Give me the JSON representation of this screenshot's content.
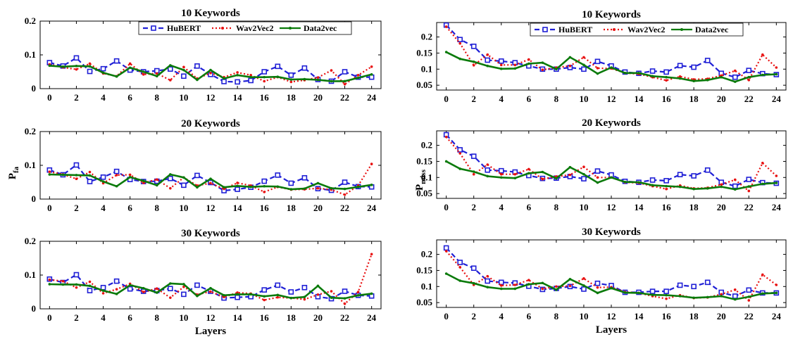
{
  "figure": {
    "left_ylabel": {
      "main": "P",
      "sub": "fa"
    },
    "right_ylabel": {
      "main": "P",
      "sub": "miss"
    },
    "xlabel": "Layers"
  },
  "legend": {
    "items": [
      {
        "label": "HuBERT",
        "color": "#1f1fd6",
        "marker": "square",
        "dash": "dashed"
      },
      {
        "label": "Wav2Vec2",
        "color": "#e81010",
        "marker": "dot",
        "dash": "dotted"
      },
      {
        "label": "Data2vec",
        "color": "#0a7a0a",
        "marker": "dot",
        "dash": "solid"
      }
    ]
  },
  "chart_data": [
    {
      "type": "line",
      "title": "10 Keywords",
      "xlabel": "",
      "ylabel": "",
      "xticks": [
        "0",
        "2",
        "4",
        "6",
        "8",
        "10",
        "12",
        "14",
        "16",
        "18",
        "20",
        "22",
        "24"
      ],
      "yticks": [
        "0",
        "0.1",
        "0.2"
      ],
      "ylim": [
        0,
        0.2
      ],
      "xlim": [
        -0.7,
        24.7
      ],
      "x": [
        0,
        1,
        2,
        3,
        4,
        5,
        6,
        7,
        8,
        9,
        10,
        11,
        12,
        13,
        14,
        15,
        16,
        17,
        18,
        19,
        20,
        21,
        22,
        23,
        24
      ],
      "series": [
        {
          "name": "HuBERT",
          "values": [
            0.077,
            0.067,
            0.091,
            0.051,
            0.059,
            0.082,
            0.055,
            0.05,
            0.053,
            0.058,
            0.037,
            0.067,
            0.042,
            0.021,
            0.02,
            0.024,
            0.05,
            0.066,
            0.04,
            0.061,
            0.027,
            0.022,
            0.05,
            0.034,
            0.034
          ]
        },
        {
          "name": "Wav2Vec2",
          "values": [
            0.072,
            0.063,
            0.057,
            0.074,
            0.045,
            0.037,
            0.074,
            0.042,
            0.045,
            0.025,
            0.064,
            0.03,
            0.046,
            0.034,
            0.048,
            0.04,
            0.022,
            0.034,
            0.02,
            0.025,
            0.033,
            0.054,
            0.013,
            0.04,
            0.065
          ]
        },
        {
          "name": "Data2vec",
          "values": [
            0.068,
            0.065,
            0.067,
            0.066,
            0.047,
            0.036,
            0.062,
            0.05,
            0.037,
            0.069,
            0.055,
            0.026,
            0.055,
            0.03,
            0.04,
            0.034,
            0.034,
            0.035,
            0.027,
            0.028,
            0.026,
            0.022,
            0.022,
            0.032,
            0.042
          ]
        }
      ]
    },
    {
      "type": "line",
      "title": "20 Keywords",
      "xlabel": "",
      "ylabel": "",
      "xticks": [
        "0",
        "2",
        "4",
        "6",
        "8",
        "10",
        "12",
        "14",
        "16",
        "18",
        "20",
        "22",
        "24"
      ],
      "yticks": [
        "0",
        "0.1",
        "0.2"
      ],
      "ylim": [
        0,
        0.2
      ],
      "xlim": [
        -0.7,
        24.7
      ],
      "x": [
        0,
        1,
        2,
        3,
        4,
        5,
        6,
        7,
        8,
        9,
        10,
        11,
        12,
        13,
        14,
        15,
        16,
        17,
        18,
        19,
        20,
        21,
        22,
        23,
        24
      ],
      "series": [
        {
          "name": "HuBERT",
          "values": [
            0.086,
            0.072,
            0.101,
            0.052,
            0.065,
            0.082,
            0.058,
            0.052,
            0.053,
            0.061,
            0.041,
            0.07,
            0.049,
            0.025,
            0.029,
            0.035,
            0.053,
            0.071,
            0.047,
            0.063,
            0.031,
            0.026,
            0.05,
            0.037,
            0.036
          ]
        },
        {
          "name": "Wav2Vec2",
          "values": [
            0.081,
            0.073,
            0.06,
            0.08,
            0.047,
            0.071,
            0.072,
            0.048,
            0.058,
            0.032,
            0.064,
            0.04,
            0.047,
            0.03,
            0.048,
            0.04,
            0.021,
            0.036,
            0.028,
            0.029,
            0.032,
            0.028,
            0.013,
            0.04,
            0.104
          ]
        },
        {
          "name": "Data2vec",
          "values": [
            0.073,
            0.072,
            0.071,
            0.07,
            0.052,
            0.038,
            0.065,
            0.054,
            0.041,
            0.073,
            0.064,
            0.035,
            0.06,
            0.035,
            0.039,
            0.036,
            0.038,
            0.037,
            0.029,
            0.031,
            0.047,
            0.032,
            0.03,
            0.036,
            0.042
          ]
        }
      ]
    },
    {
      "type": "line",
      "title": "30 Keywords",
      "xlabel": "Layers",
      "ylabel": "",
      "xticks": [
        "0",
        "2",
        "4",
        "6",
        "8",
        "10",
        "12",
        "14",
        "16",
        "18",
        "20",
        "22",
        "24"
      ],
      "yticks": [
        "0",
        "0.1",
        "0.2"
      ],
      "ylim": [
        0,
        0.2
      ],
      "xlim": [
        -0.7,
        24.7
      ],
      "x": [
        0,
        1,
        2,
        3,
        4,
        5,
        6,
        7,
        8,
        9,
        10,
        11,
        12,
        13,
        14,
        15,
        16,
        17,
        18,
        19,
        20,
        21,
        22,
        23,
        24
      ],
      "series": [
        {
          "name": "HuBERT",
          "values": [
            0.088,
            0.078,
            0.101,
            0.054,
            0.063,
            0.082,
            0.059,
            0.052,
            0.054,
            0.06,
            0.043,
            0.07,
            0.052,
            0.032,
            0.034,
            0.036,
            0.056,
            0.07,
            0.05,
            0.063,
            0.036,
            0.03,
            0.052,
            0.04,
            0.038
          ]
        },
        {
          "name": "Wav2Vec2",
          "values": [
            0.086,
            0.082,
            0.063,
            0.08,
            0.046,
            0.058,
            0.074,
            0.05,
            0.06,
            0.033,
            0.065,
            0.042,
            0.051,
            0.035,
            0.048,
            0.045,
            0.026,
            0.034,
            0.032,
            0.028,
            0.042,
            0.052,
            0.015,
            0.05,
            0.162
          ]
        },
        {
          "name": "Data2vec",
          "values": [
            0.073,
            0.072,
            0.072,
            0.068,
            0.054,
            0.044,
            0.07,
            0.061,
            0.048,
            0.075,
            0.073,
            0.038,
            0.061,
            0.04,
            0.043,
            0.043,
            0.037,
            0.041,
            0.032,
            0.035,
            0.068,
            0.033,
            0.031,
            0.04,
            0.045
          ]
        }
      ]
    },
    {
      "type": "line",
      "title": "10 Keywords",
      "xlabel": "",
      "ylabel": "",
      "xticks": [
        "0",
        "2",
        "4",
        "6",
        "8",
        "10",
        "12",
        "14",
        "16",
        "18",
        "20",
        "22",
        "24"
      ],
      "yticks": [
        "0.05",
        "0.1",
        "0.15",
        "0.2"
      ],
      "ylim": [
        0.035,
        0.245
      ],
      "xlim": [
        -0.7,
        24.7
      ],
      "x": [
        0,
        1,
        2,
        3,
        4,
        5,
        6,
        7,
        8,
        9,
        10,
        11,
        12,
        13,
        14,
        15,
        16,
        17,
        18,
        19,
        20,
        21,
        22,
        23,
        24
      ],
      "series": [
        {
          "name": "HuBERT",
          "values": [
            0.237,
            0.192,
            0.171,
            0.128,
            0.125,
            0.12,
            0.11,
            0.1,
            0.1,
            0.105,
            0.1,
            0.124,
            0.11,
            0.091,
            0.087,
            0.094,
            0.091,
            0.111,
            0.106,
            0.127,
            0.087,
            0.075,
            0.096,
            0.086,
            0.083
          ]
        },
        {
          "name": "Wav2Vec2",
          "values": [
            0.232,
            0.18,
            0.112,
            0.145,
            0.113,
            0.113,
            0.13,
            0.098,
            0.105,
            0.11,
            0.137,
            0.103,
            0.102,
            0.088,
            0.085,
            0.075,
            0.065,
            0.077,
            0.068,
            0.07,
            0.08,
            0.095,
            0.066,
            0.145,
            0.105
          ]
        },
        {
          "name": "Data2vec",
          "values": [
            0.153,
            0.132,
            0.123,
            0.11,
            0.101,
            0.102,
            0.117,
            0.12,
            0.1,
            0.137,
            0.113,
            0.086,
            0.105,
            0.088,
            0.088,
            0.078,
            0.075,
            0.071,
            0.063,
            0.066,
            0.075,
            0.061,
            0.075,
            0.082,
            0.084
          ]
        }
      ]
    },
    {
      "type": "line",
      "title": "20 Keywords",
      "xlabel": "",
      "ylabel": "",
      "xticks": [
        "0",
        "2",
        "4",
        "6",
        "8",
        "10",
        "12",
        "14",
        "16",
        "18",
        "20",
        "22",
        "24"
      ],
      "yticks": [
        "0.05",
        "0.1",
        "0.15",
        "0.2"
      ],
      "ylim": [
        0.035,
        0.245
      ],
      "xlim": [
        -0.7,
        24.7
      ],
      "x": [
        0,
        1,
        2,
        3,
        4,
        5,
        6,
        7,
        8,
        9,
        10,
        11,
        12,
        13,
        14,
        15,
        16,
        17,
        18,
        19,
        20,
        21,
        22,
        23,
        24
      ],
      "series": [
        {
          "name": "HuBERT",
          "values": [
            0.233,
            0.186,
            0.166,
            0.123,
            0.121,
            0.117,
            0.106,
            0.097,
            0.098,
            0.103,
            0.096,
            0.12,
            0.108,
            0.088,
            0.085,
            0.092,
            0.09,
            0.109,
            0.105,
            0.123,
            0.085,
            0.073,
            0.094,
            0.084,
            0.082
          ]
        },
        {
          "name": "Wav2Vec2",
          "values": [
            0.226,
            0.175,
            0.11,
            0.14,
            0.11,
            0.11,
            0.126,
            0.095,
            0.103,
            0.108,
            0.133,
            0.1,
            0.1,
            0.085,
            0.083,
            0.073,
            0.064,
            0.075,
            0.066,
            0.068,
            0.078,
            0.093,
            0.058,
            0.145,
            0.105
          ]
        },
        {
          "name": "Data2vec",
          "values": [
            0.15,
            0.127,
            0.118,
            0.104,
            0.1,
            0.098,
            0.113,
            0.117,
            0.097,
            0.132,
            0.11,
            0.084,
            0.1,
            0.086,
            0.085,
            0.076,
            0.073,
            0.071,
            0.064,
            0.066,
            0.071,
            0.063,
            0.072,
            0.08,
            0.083
          ]
        }
      ]
    },
    {
      "type": "line",
      "title": "30 Keywords",
      "xlabel": "Layers",
      "ylabel": "",
      "xticks": [
        "0",
        "2",
        "4",
        "6",
        "8",
        "10",
        "12",
        "14",
        "16",
        "18",
        "20",
        "22",
        "24"
      ],
      "yticks": [
        "0.05",
        "0.1",
        "0.15",
        "0.2"
      ],
      "ylim": [
        0.035,
        0.245
      ],
      "xlim": [
        -0.7,
        24.7
      ],
      "x": [
        0,
        1,
        2,
        3,
        4,
        5,
        6,
        7,
        8,
        9,
        10,
        11,
        12,
        13,
        14,
        15,
        16,
        17,
        18,
        19,
        20,
        21,
        22,
        23,
        24
      ],
      "series": [
        {
          "name": "HuBERT",
          "values": [
            0.22,
            0.175,
            0.157,
            0.117,
            0.113,
            0.111,
            0.101,
            0.091,
            0.094,
            0.1,
            0.092,
            0.11,
            0.103,
            0.082,
            0.082,
            0.085,
            0.085,
            0.104,
            0.1,
            0.113,
            0.082,
            0.07,
            0.089,
            0.08,
            0.08
          ]
        },
        {
          "name": "Wav2Vec2",
          "values": [
            0.21,
            0.16,
            0.105,
            0.132,
            0.103,
            0.105,
            0.12,
            0.093,
            0.1,
            0.102,
            0.125,
            0.097,
            0.098,
            0.083,
            0.08,
            0.07,
            0.062,
            0.073,
            0.064,
            0.066,
            0.076,
            0.09,
            0.057,
            0.137,
            0.105
          ]
        },
        {
          "name": "Data2vec",
          "values": [
            0.14,
            0.118,
            0.11,
            0.098,
            0.093,
            0.093,
            0.107,
            0.111,
            0.09,
            0.123,
            0.103,
            0.08,
            0.095,
            0.081,
            0.08,
            0.074,
            0.073,
            0.07,
            0.065,
            0.067,
            0.07,
            0.06,
            0.068,
            0.078,
            0.08
          ]
        }
      ]
    }
  ]
}
